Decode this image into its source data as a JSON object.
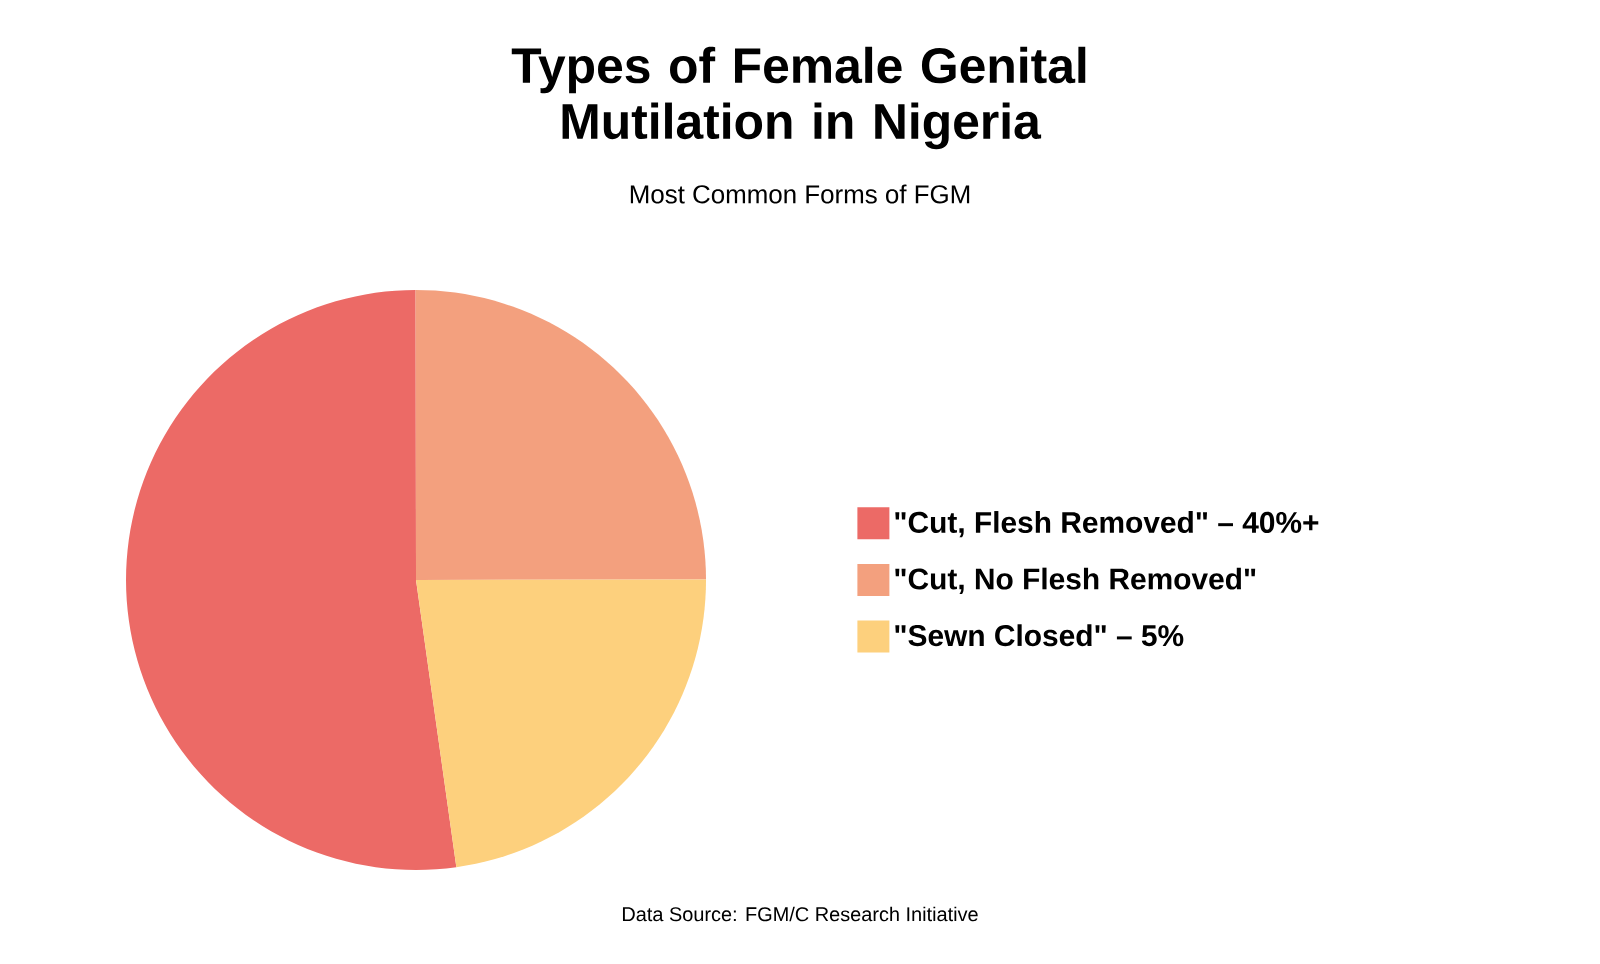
{
  "chart_data": {
    "type": "pie",
    "title": "Types of Female Genital Mutilation in Nigeria",
    "subtitle": "Most Common Forms of FGM",
    "categories": [
      "\"Cut, Flesh Removed\" – 40%+",
      "\"Cut, No Flesh Removed\"",
      "\"Sewn Closed\" – 5%"
    ],
    "values": [
      52.2,
      25,
      22.8
    ],
    "colors": [
      "#ec6a66",
      "#f3a07e",
      "#fdd07d"
    ],
    "legend": "right",
    "annotations": [
      "Data Source: FGM/C Research Initiative"
    ]
  }
}
